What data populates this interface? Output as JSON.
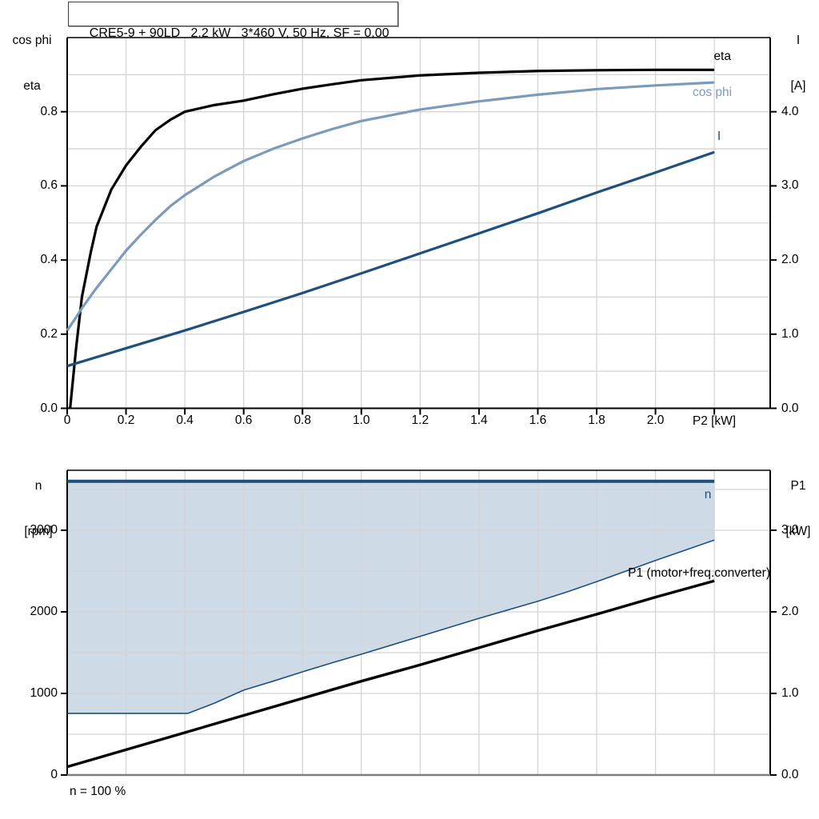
{
  "title": "CRE5-9 + 90LD   2.2 kW   3*460 V, 50 Hz, SF = 0,00",
  "colors": {
    "eta": "#000000",
    "cos_phi": "#7B9BBB",
    "current": "#1D4F7F",
    "p1": "#000000",
    "speed_band": "#CFDAE7",
    "grid": "#D4D4D4",
    "frame": "#000000",
    "baseline": "#7F7F7F"
  },
  "chart_data": [
    {
      "type": "line",
      "name": "efficiency-powerfactor-current-vs-load",
      "x_axis": {
        "label": "P2 [kW]",
        "min": 0,
        "max": 2.39,
        "ticks": [
          [
            0,
            "0"
          ],
          [
            0.2,
            "0.2"
          ],
          [
            0.4,
            "0.4"
          ],
          [
            0.6,
            "0.6"
          ],
          [
            0.8,
            "0.8"
          ],
          [
            1.0,
            "1.0"
          ],
          [
            1.2,
            "1.2"
          ],
          [
            1.4,
            "1.4"
          ],
          [
            1.6,
            "1.6"
          ],
          [
            1.8,
            "1.8"
          ],
          [
            2.0,
            "2.0"
          ],
          [
            2.2,
            ""
          ]
        ],
        "gridlines": [
          0.2,
          0.4,
          0.6,
          0.8,
          1.0,
          1.2,
          1.4,
          1.6,
          1.8,
          2.0,
          2.2
        ],
        "label_at": 2.2
      },
      "left_axis": {
        "title_lines": [
          "cos phi",
          "eta"
        ],
        "min": 0,
        "max": 1.0,
        "ticks": [
          [
            0.0,
            "0.0"
          ],
          [
            0.2,
            "0.2"
          ],
          [
            0.4,
            "0.4"
          ],
          [
            0.6,
            "0.6"
          ],
          [
            0.8,
            "0.8"
          ]
        ],
        "gridlines": [
          0.1,
          0.2,
          0.3,
          0.4,
          0.5,
          0.6,
          0.7,
          0.8,
          0.9
        ]
      },
      "right_axis": {
        "title_lines": [
          "I",
          "[A]"
        ],
        "min": 0,
        "max": 5.0,
        "ticks": [
          [
            0.0,
            "0.0"
          ],
          [
            1.0,
            "1.0"
          ],
          [
            2.0,
            "2.0"
          ],
          [
            3.0,
            "3.0"
          ],
          [
            4.0,
            "4.0"
          ]
        ]
      },
      "series": [
        {
          "name": "eta",
          "label": "eta",
          "axis": "left",
          "color_key": "eta",
          "width": 3.2,
          "points": [
            [
              0.01,
              0
            ],
            [
              0.03,
              0.16
            ],
            [
              0.05,
              0.3
            ],
            [
              0.08,
              0.42
            ],
            [
              0.1,
              0.49
            ],
            [
              0.15,
              0.59
            ],
            [
              0.2,
              0.655
            ],
            [
              0.25,
              0.705
            ],
            [
              0.3,
              0.75
            ],
            [
              0.35,
              0.778
            ],
            [
              0.4,
              0.8
            ],
            [
              0.5,
              0.818
            ],
            [
              0.6,
              0.83
            ],
            [
              0.7,
              0.847
            ],
            [
              0.8,
              0.862
            ],
            [
              0.9,
              0.874
            ],
            [
              1.0,
              0.885
            ],
            [
              1.2,
              0.898
            ],
            [
              1.4,
              0.905
            ],
            [
              1.6,
              0.91
            ],
            [
              1.8,
              0.912
            ],
            [
              2.0,
              0.913
            ],
            [
              2.2,
              0.913
            ]
          ]
        },
        {
          "name": "cos-phi",
          "label": "cos phi",
          "axis": "left",
          "color_key": "cos_phi",
          "width": 3.2,
          "points": [
            [
              0,
              0.21
            ],
            [
              0.03,
              0.245
            ],
            [
              0.05,
              0.27
            ],
            [
              0.1,
              0.325
            ],
            [
              0.15,
              0.375
            ],
            [
              0.2,
              0.425
            ],
            [
              0.25,
              0.468
            ],
            [
              0.3,
              0.508
            ],
            [
              0.35,
              0.545
            ],
            [
              0.4,
              0.575
            ],
            [
              0.5,
              0.625
            ],
            [
              0.6,
              0.667
            ],
            [
              0.7,
              0.7
            ],
            [
              0.8,
              0.728
            ],
            [
              0.9,
              0.753
            ],
            [
              1.0,
              0.775
            ],
            [
              1.2,
              0.806
            ],
            [
              1.4,
              0.828
            ],
            [
              1.6,
              0.846
            ],
            [
              1.8,
              0.861
            ],
            [
              2.0,
              0.871
            ],
            [
              2.2,
              0.879
            ]
          ]
        },
        {
          "name": "current",
          "label": "I",
          "axis": "right",
          "color_key": "current",
          "width": 3.2,
          "points": [
            [
              0,
              0.57
            ],
            [
              0.2,
              0.81
            ],
            [
              0.4,
              1.05
            ],
            [
              0.6,
              1.3
            ],
            [
              0.8,
              1.555
            ],
            [
              1.0,
              1.82
            ],
            [
              1.2,
              2.09
            ],
            [
              1.4,
              2.36
            ],
            [
              1.6,
              2.63
            ],
            [
              1.8,
              2.91
            ],
            [
              2.0,
              3.18
            ],
            [
              2.2,
              3.455
            ]
          ]
        }
      ]
    },
    {
      "type": "line",
      "name": "speed-range-and-input-power-vs-load",
      "footnote": "n = 100 %",
      "x_axis": {
        "label": "",
        "min": 0,
        "max": 2.39,
        "ticks": [],
        "gridlines": [
          0.2,
          0.4,
          0.6,
          0.8,
          1.0,
          1.2,
          1.4,
          1.6,
          1.8,
          2.0,
          2.2
        ]
      },
      "left_axis": {
        "title_lines": [
          "n",
          "[rpm]"
        ],
        "min": 0,
        "max": 3735,
        "ticks": [
          [
            0,
            "0"
          ],
          [
            1000,
            "1000"
          ],
          [
            2000,
            "2000"
          ],
          [
            3000,
            "3000"
          ]
        ],
        "gridlines": [
          500,
          1000,
          1500,
          2000,
          2500,
          3000,
          3500
        ]
      },
      "right_axis": {
        "title_lines": [
          "P1",
          "[kW]"
        ],
        "min": 0,
        "max": 3.735,
        "ticks": [
          [
            0,
            "0.0"
          ],
          [
            1.0,
            "1.0"
          ],
          [
            2.0,
            "2.0"
          ],
          [
            3.0,
            "3.0"
          ]
        ]
      },
      "area": {
        "upper": "n-max",
        "lower": "n-min",
        "color_key": "speed_band"
      },
      "series": [
        {
          "name": "n-max",
          "label": "n",
          "axis": "left",
          "color_key": "current",
          "width": 4,
          "points": [
            [
              0,
              3600
            ],
            [
              2.2,
              3600
            ]
          ]
        },
        {
          "name": "n-min",
          "label": "",
          "axis": "left",
          "color_key": "current",
          "width": 1.6,
          "points": [
            [
              0,
              755
            ],
            [
              0.41,
              755
            ],
            [
              0.5,
              880
            ],
            [
              0.6,
              1040
            ],
            [
              0.7,
              1150
            ],
            [
              0.8,
              1265
            ],
            [
              0.9,
              1375
            ],
            [
              1.0,
              1480
            ],
            [
              1.1,
              1590
            ],
            [
              1.2,
              1700
            ],
            [
              1.3,
              1810
            ],
            [
              1.4,
              1920
            ],
            [
              1.5,
              2025
            ],
            [
              1.6,
              2130
            ],
            [
              1.7,
              2245
            ],
            [
              1.8,
              2370
            ],
            [
              1.9,
              2500
            ],
            [
              2.0,
              2630
            ],
            [
              2.1,
              2755
            ],
            [
              2.2,
              2880
            ]
          ]
        },
        {
          "name": "p1-motor-freq-converter",
          "label": "P1 (motor+freq.converter)",
          "axis": "right",
          "color_key": "p1",
          "width": 3.4,
          "points": [
            [
              0,
              0.1
            ],
            [
              0.2,
              0.31
            ],
            [
              0.4,
              0.52
            ],
            [
              0.6,
              0.73
            ],
            [
              0.8,
              0.94
            ],
            [
              1.0,
              1.15
            ],
            [
              1.2,
              1.35
            ],
            [
              1.4,
              1.56
            ],
            [
              1.6,
              1.77
            ],
            [
              1.8,
              1.97
            ],
            [
              2.0,
              2.18
            ],
            [
              2.2,
              2.38
            ]
          ]
        }
      ]
    }
  ]
}
